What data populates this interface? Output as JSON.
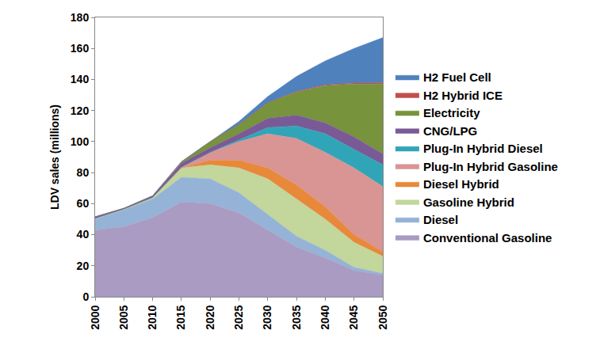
{
  "chart_data": {
    "type": "area",
    "stacked": true,
    "grid": false,
    "legend": "right",
    "y_label": "LDV sales (millions)",
    "categories": [
      "2000",
      "2005",
      "2010",
      "2015",
      "2020",
      "2025",
      "2030",
      "2035",
      "2040",
      "2045",
      "2050"
    ],
    "ylim": [
      0,
      180
    ],
    "yticks": [
      0,
      20,
      40,
      60,
      80,
      100,
      120,
      140,
      160,
      180
    ],
    "series": [
      {
        "name": "Conventional Gasoline",
        "color": "#a99bc2",
        "values": [
          43,
          45,
          51,
          61,
          60,
          54,
          43,
          32,
          25,
          17,
          14
        ]
      },
      {
        "name": "Diesel",
        "color": "#95b3d7",
        "values": [
          7,
          11,
          12,
          16,
          16,
          13,
          10,
          7,
          5,
          2,
          1
        ]
      },
      {
        "name": "Gasoline Hybrid",
        "color": "#c3d69b",
        "values": [
          0.5,
          0.5,
          1,
          6,
          9,
          16,
          23,
          24,
          20,
          16,
          11
        ]
      },
      {
        "name": "Diesel Hybrid",
        "color": "#e8883a",
        "values": [
          0,
          0,
          0,
          0,
          3,
          5,
          7,
          9,
          8,
          5,
          3
        ]
      },
      {
        "name": "Plug-In Hybrid Gasoline",
        "color": "#d99594",
        "values": [
          0,
          0,
          0,
          0.5,
          5,
          12,
          22,
          30,
          35,
          43,
          42
        ]
      },
      {
        "name": "Plug-In Hybrid Diesel",
        "color": "#31a5b8",
        "values": [
          0,
          0,
          0,
          0,
          0,
          1,
          4,
          8,
          12,
          12,
          14
        ]
      },
      {
        "name": "CNG/LPG",
        "color": "#7a5a96",
        "values": [
          1,
          0.5,
          1,
          2.5,
          3,
          4,
          6,
          7,
          7,
          8,
          7
        ]
      },
      {
        "name": "Electricity",
        "color": "#77933c",
        "values": [
          0,
          0,
          0,
          1,
          4,
          6,
          10,
          15,
          24,
          34,
          45
        ]
      },
      {
        "name": "H2 Hybrid ICE",
        "color": "#c0504d",
        "values": [
          0,
          0,
          0,
          0,
          0,
          0,
          0,
          0.3,
          0.5,
          0.7,
          0.8
        ]
      },
      {
        "name": "H2 Fuel Cell",
        "color": "#4f81bd",
        "values": [
          0,
          0,
          0,
          0,
          0,
          2,
          4,
          9.7,
          15.5,
          22.3,
          29.2
        ]
      }
    ]
  }
}
